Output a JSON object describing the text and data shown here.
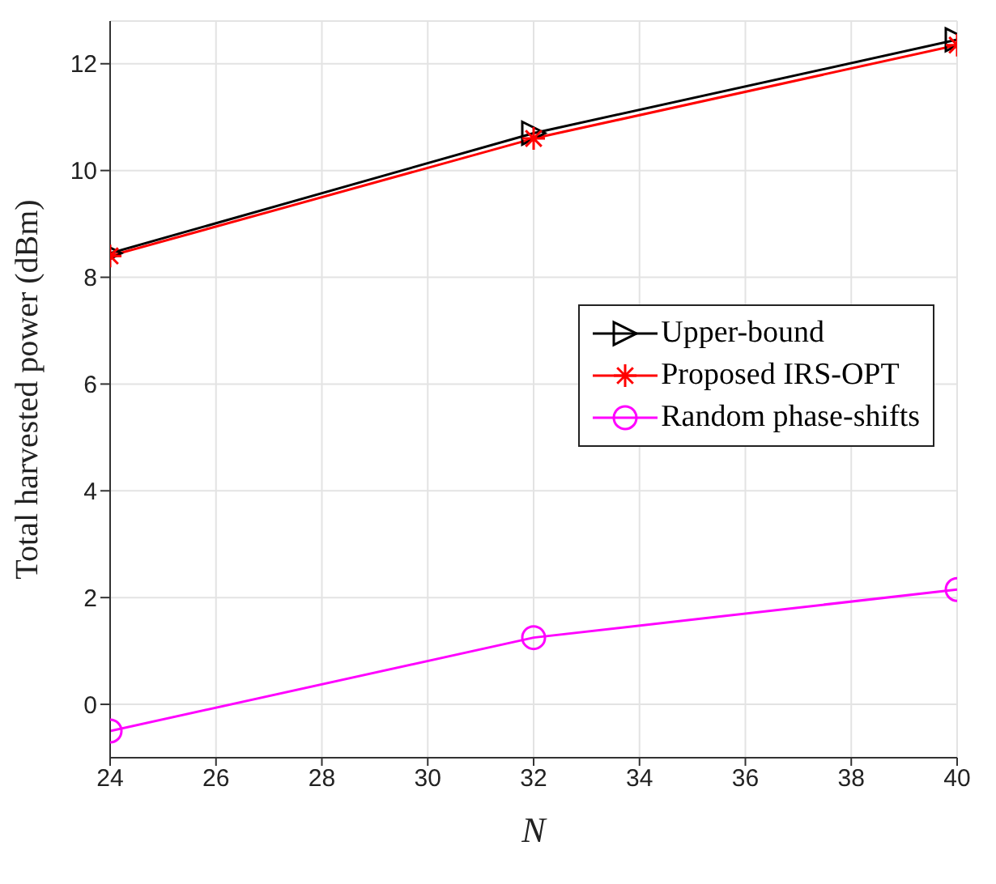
{
  "chart_data": {
    "type": "line",
    "xlabel": "N",
    "ylabel": "Total harvested power (dBm)",
    "x": [
      24,
      32,
      40
    ],
    "series": [
      {
        "name": "Upper-bound",
        "color": "#000000",
        "marker": "triangle",
        "values": [
          8.45,
          10.7,
          12.45
        ]
      },
      {
        "name": "Proposed IRS-OPT",
        "color": "#ff0000",
        "marker": "cross",
        "values": [
          8.4,
          10.6,
          12.35
        ]
      },
      {
        "name": "Random phase-shifts",
        "color": "#ff00ff",
        "marker": "circle",
        "values": [
          -0.5,
          1.25,
          2.15
        ]
      }
    ],
    "xlim": [
      24,
      40
    ],
    "xticks": [
      24,
      26,
      28,
      30,
      32,
      34,
      36,
      38,
      40
    ],
    "ylim": [
      -1,
      12.8
    ],
    "yticks": [
      0,
      2,
      4,
      6,
      8,
      10,
      12
    ],
    "grid": true,
    "legend": "right",
    "line_style": "solid"
  }
}
